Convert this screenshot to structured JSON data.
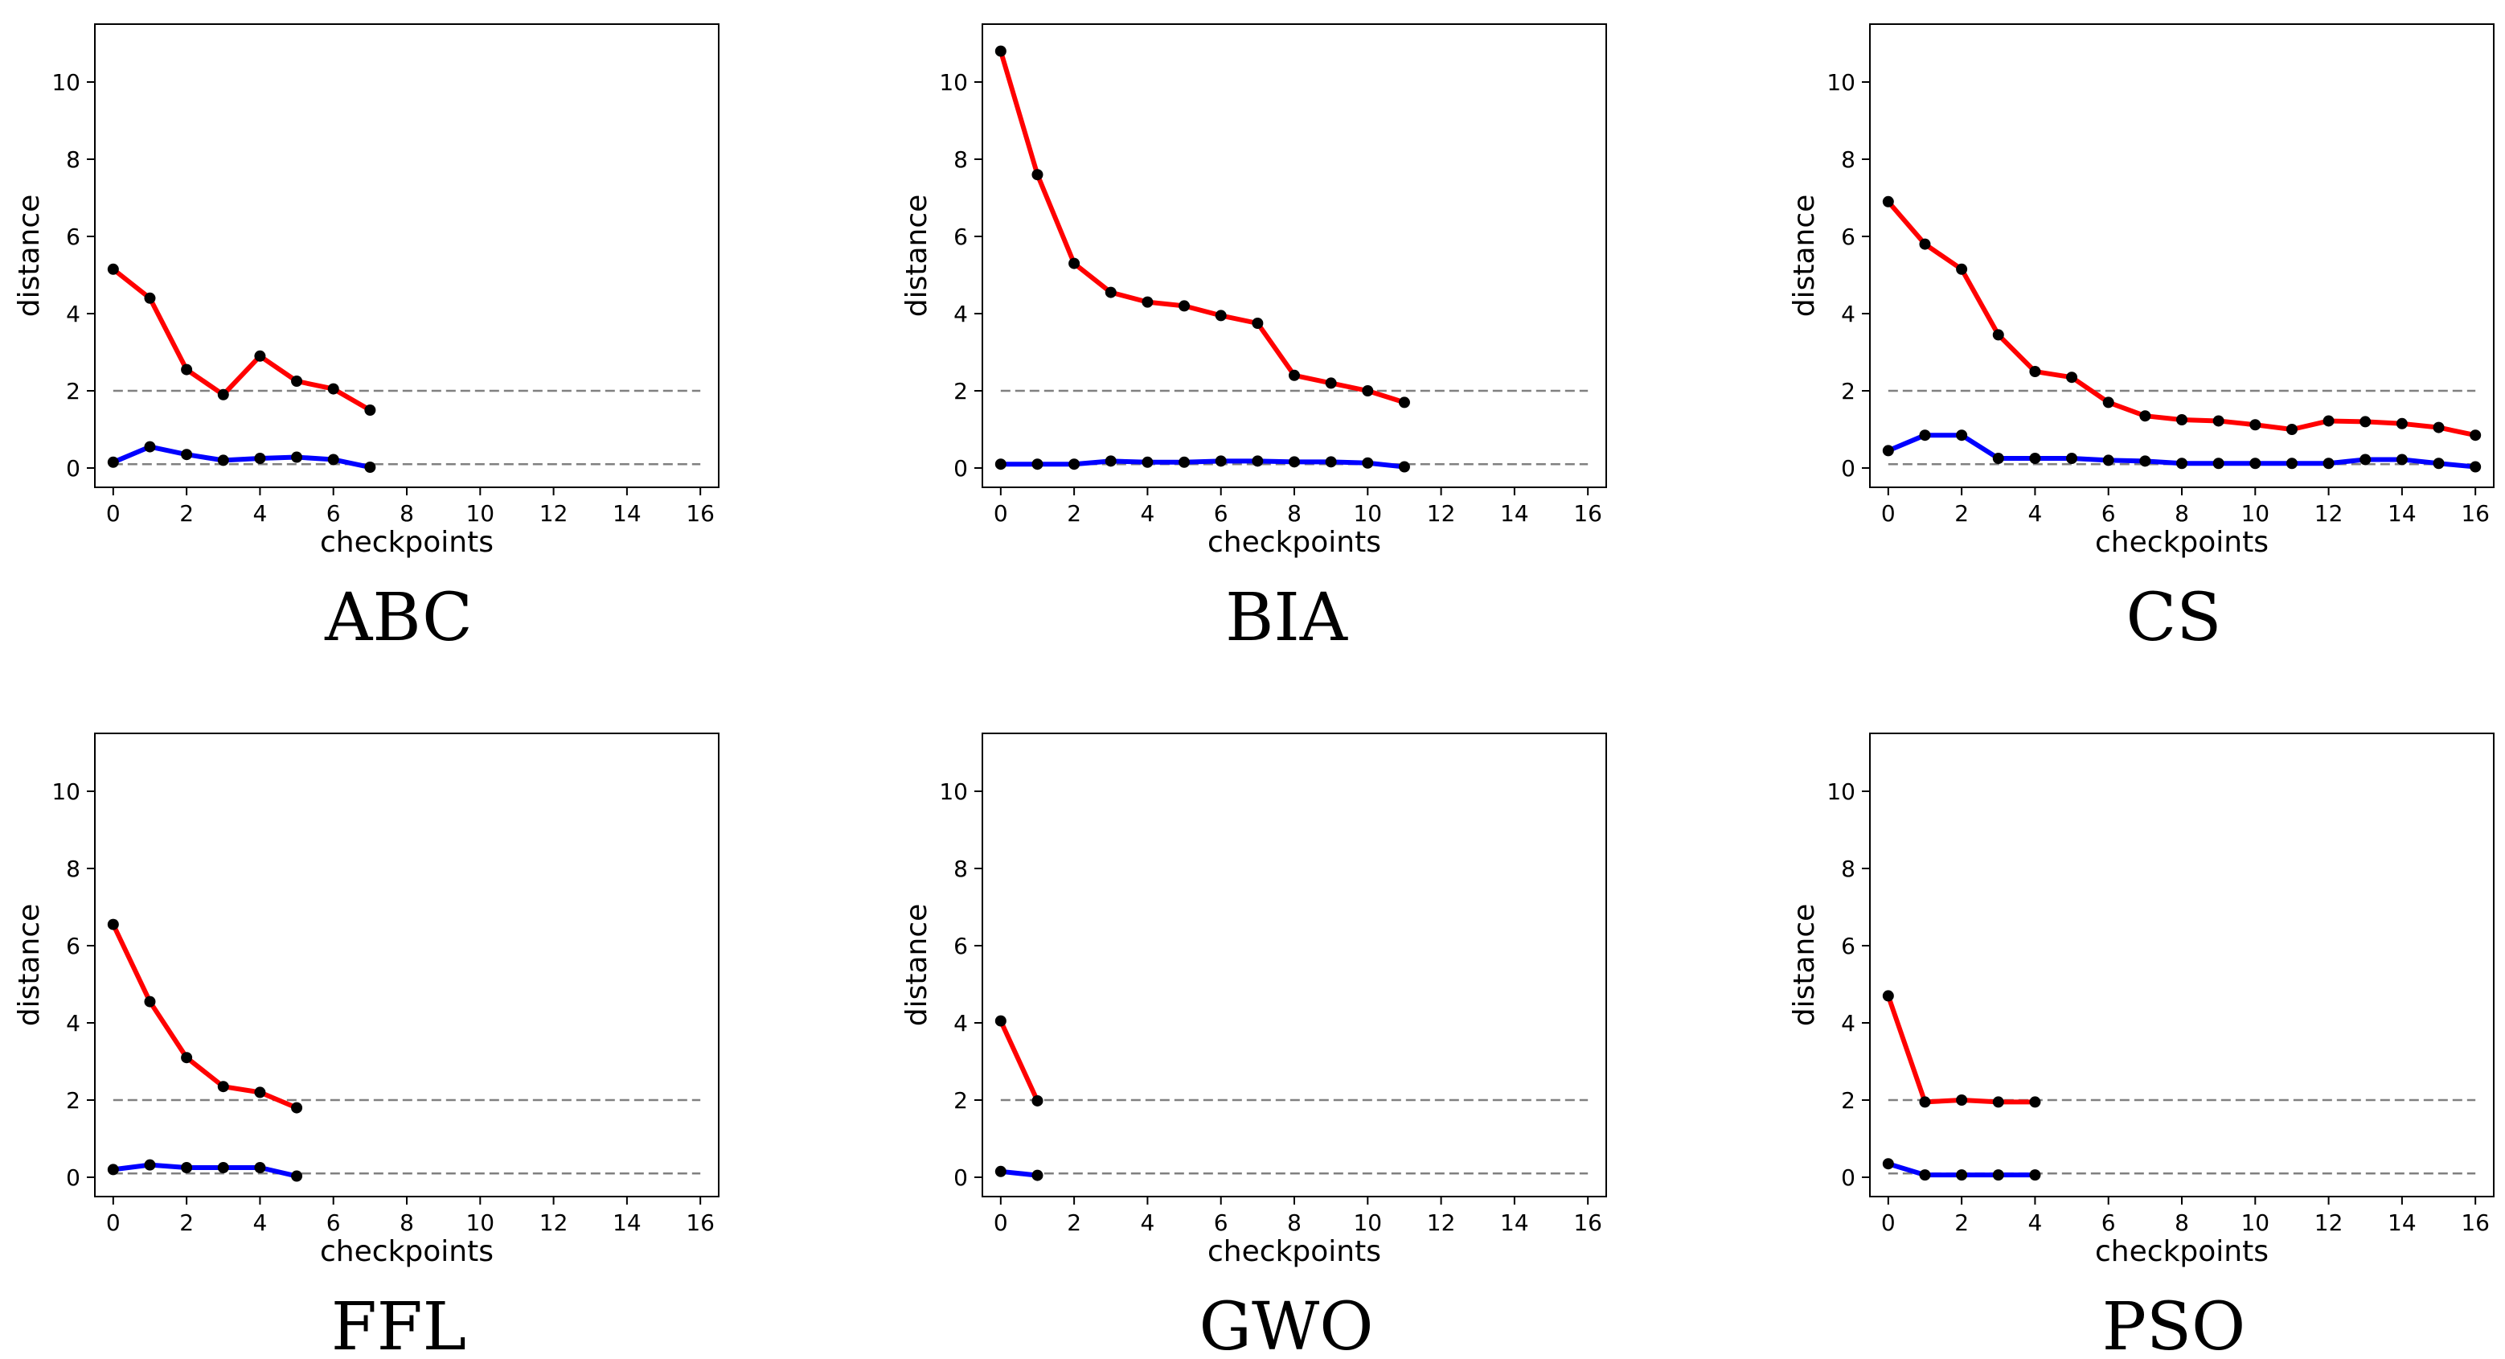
{
  "chart_data": [
    {
      "type": "line",
      "name": "ABC",
      "xlabel": "checkpoints",
      "ylabel": "distance",
      "xlim": [
        -0.5,
        16.5
      ],
      "ylim": [
        -0.5,
        11.5
      ],
      "xticks": [
        0,
        2,
        4,
        6,
        8,
        10,
        12,
        14,
        16
      ],
      "yticks": [
        0,
        2,
        4,
        6,
        8,
        10
      ],
      "reference_lines": [
        2,
        0.1
      ],
      "series": [
        {
          "name": "red",
          "color": "#ff0000",
          "x": [
            0,
            1,
            2,
            3,
            4,
            5,
            6,
            7
          ],
          "values": [
            5.15,
            4.4,
            2.55,
            1.9,
            2.9,
            2.25,
            2.05,
            1.5
          ]
        },
        {
          "name": "blue",
          "color": "#0000ff",
          "x": [
            0,
            1,
            2,
            3,
            4,
            5,
            6,
            7
          ],
          "values": [
            0.15,
            0.55,
            0.35,
            0.2,
            0.25,
            0.28,
            0.22,
            0.02
          ]
        }
      ]
    },
    {
      "type": "line",
      "name": "BIA",
      "xlabel": "checkpoints",
      "ylabel": "distance",
      "xlim": [
        -0.5,
        16.5
      ],
      "ylim": [
        -0.5,
        11.5
      ],
      "xticks": [
        0,
        2,
        4,
        6,
        8,
        10,
        12,
        14,
        16
      ],
      "yticks": [
        0,
        2,
        4,
        6,
        8,
        10
      ],
      "reference_lines": [
        2,
        0.1
      ],
      "series": [
        {
          "name": "red",
          "color": "#ff0000",
          "x": [
            0,
            1,
            2,
            3,
            4,
            5,
            6,
            7,
            8,
            9,
            10,
            11
          ],
          "values": [
            10.8,
            7.6,
            5.3,
            4.55,
            4.3,
            4.2,
            3.95,
            3.75,
            2.4,
            2.2,
            2.0,
            1.7
          ]
        },
        {
          "name": "blue",
          "color": "#0000ff",
          "x": [
            0,
            1,
            2,
            3,
            4,
            5,
            6,
            7,
            8,
            9,
            10,
            11
          ],
          "values": [
            0.1,
            0.1,
            0.1,
            0.18,
            0.15,
            0.15,
            0.18,
            0.18,
            0.16,
            0.16,
            0.13,
            0.03
          ]
        }
      ]
    },
    {
      "type": "line",
      "name": "CS",
      "xlabel": "checkpoints",
      "ylabel": "distance",
      "xlim": [
        -0.5,
        16.5
      ],
      "ylim": [
        -0.5,
        11.5
      ],
      "xticks": [
        0,
        2,
        4,
        6,
        8,
        10,
        12,
        14,
        16
      ],
      "yticks": [
        0,
        2,
        4,
        6,
        8,
        10
      ],
      "reference_lines": [
        2,
        0.1
      ],
      "series": [
        {
          "name": "red",
          "color": "#ff0000",
          "x": [
            0,
            1,
            2,
            3,
            4,
            5,
            6,
            7,
            8,
            9,
            10,
            11,
            12,
            13,
            14,
            15,
            16
          ],
          "values": [
            6.9,
            5.8,
            5.15,
            3.45,
            2.5,
            2.35,
            1.7,
            1.35,
            1.25,
            1.22,
            1.12,
            1.0,
            1.22,
            1.2,
            1.15,
            1.05,
            0.85
          ]
        },
        {
          "name": "blue",
          "color": "#0000ff",
          "x": [
            0,
            1,
            2,
            3,
            4,
            5,
            6,
            7,
            8,
            9,
            10,
            11,
            12,
            13,
            14,
            15,
            16
          ],
          "values": [
            0.45,
            0.85,
            0.85,
            0.25,
            0.25,
            0.25,
            0.2,
            0.18,
            0.12,
            0.12,
            0.12,
            0.12,
            0.12,
            0.22,
            0.22,
            0.12,
            0.03
          ]
        }
      ]
    },
    {
      "type": "line",
      "name": "FFL",
      "xlabel": "checkpoints",
      "ylabel": "distance",
      "xlim": [
        -0.5,
        16.5
      ],
      "ylim": [
        -0.5,
        11.5
      ],
      "xticks": [
        0,
        2,
        4,
        6,
        8,
        10,
        12,
        14,
        16
      ],
      "yticks": [
        0,
        2,
        4,
        6,
        8,
        10
      ],
      "reference_lines": [
        2,
        0.1
      ],
      "series": [
        {
          "name": "red",
          "color": "#ff0000",
          "x": [
            0,
            1,
            2,
            3,
            4,
            5
          ],
          "values": [
            6.55,
            4.55,
            3.1,
            2.35,
            2.2,
            1.8
          ]
        },
        {
          "name": "blue",
          "color": "#0000ff",
          "x": [
            0,
            1,
            2,
            3,
            4,
            5
          ],
          "values": [
            0.2,
            0.32,
            0.25,
            0.25,
            0.25,
            0.03
          ]
        }
      ]
    },
    {
      "type": "line",
      "name": "GWO",
      "xlabel": "checkpoints",
      "ylabel": "distance",
      "xlim": [
        -0.5,
        16.5
      ],
      "ylim": [
        -0.5,
        11.5
      ],
      "xticks": [
        0,
        2,
        4,
        6,
        8,
        10,
        12,
        14,
        16
      ],
      "yticks": [
        0,
        2,
        4,
        6,
        8,
        10
      ],
      "reference_lines": [
        2,
        0.1
      ],
      "series": [
        {
          "name": "red",
          "color": "#ff0000",
          "x": [
            0,
            1
          ],
          "values": [
            4.05,
            1.98
          ]
        },
        {
          "name": "blue",
          "color": "#0000ff",
          "x": [
            0,
            1
          ],
          "values": [
            0.15,
            0.05
          ]
        }
      ]
    },
    {
      "type": "line",
      "name": "PSO",
      "xlabel": "checkpoints",
      "ylabel": "distance",
      "xlim": [
        -0.5,
        16.5
      ],
      "ylim": [
        -0.5,
        11.5
      ],
      "xticks": [
        0,
        2,
        4,
        6,
        8,
        10,
        12,
        14,
        16
      ],
      "yticks": [
        0,
        2,
        4,
        6,
        8,
        10
      ],
      "reference_lines": [
        2,
        0.1
      ],
      "series": [
        {
          "name": "red",
          "color": "#ff0000",
          "x": [
            0,
            1,
            2,
            3,
            4
          ],
          "values": [
            4.7,
            1.95,
            2.0,
            1.95,
            1.95
          ]
        },
        {
          "name": "blue",
          "color": "#0000ff",
          "x": [
            0,
            1,
            2,
            3,
            4
          ],
          "values": [
            0.35,
            0.06,
            0.06,
            0.06,
            0.06
          ]
        }
      ]
    }
  ]
}
